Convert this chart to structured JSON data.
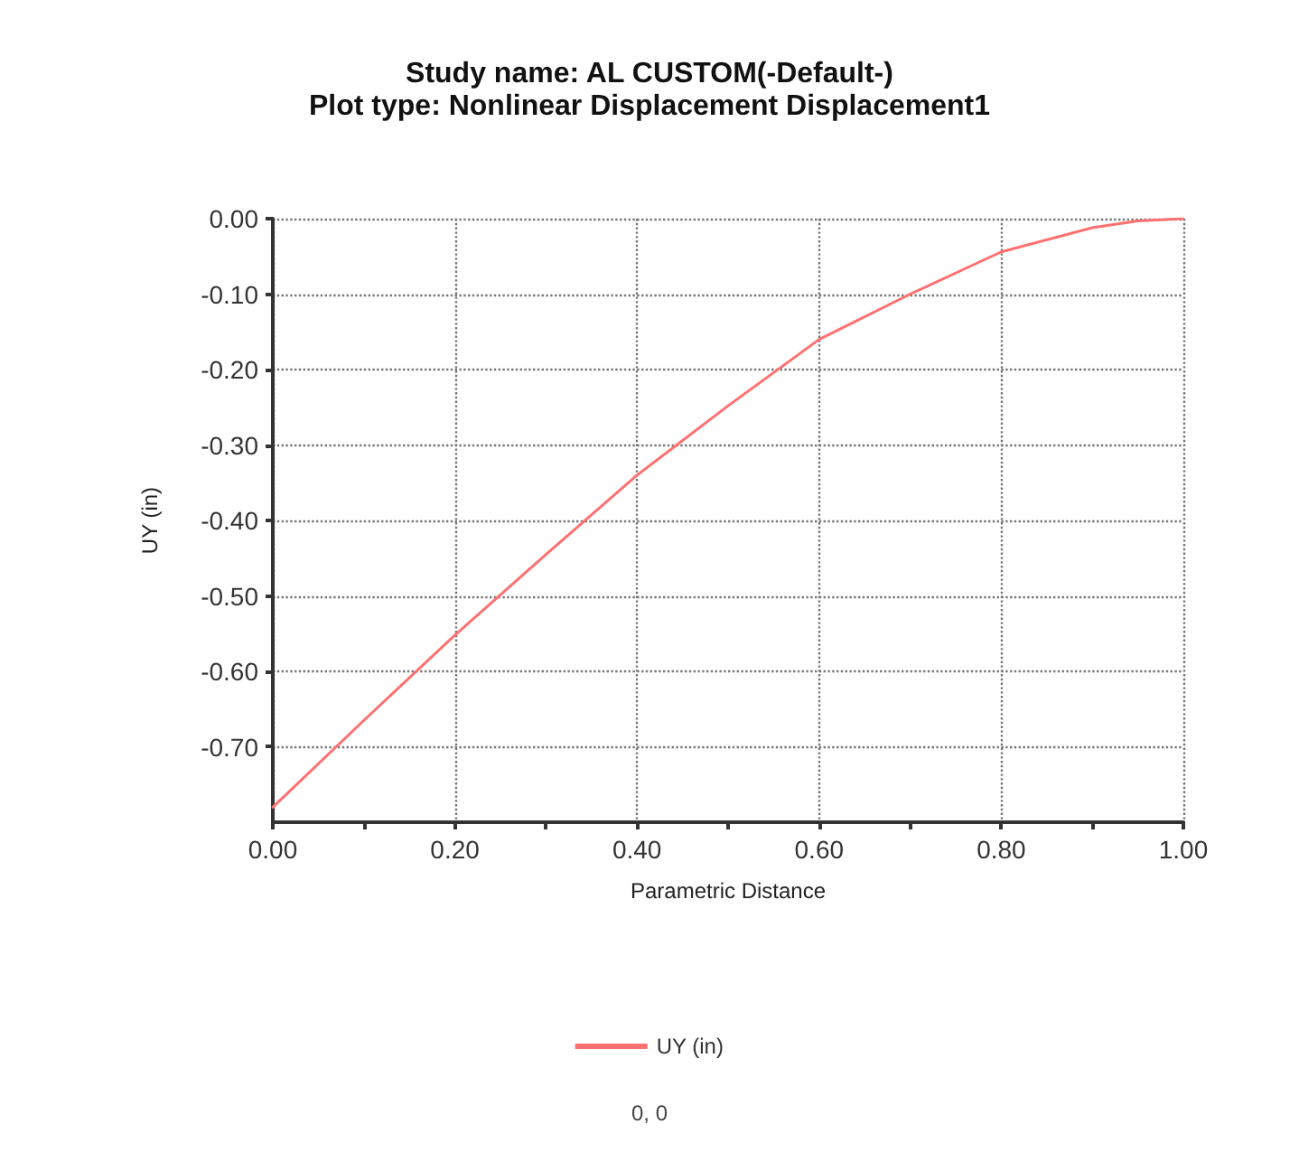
{
  "chart_data": {
    "type": "line",
    "title": "Study name: AL CUSTOM(-Default-)",
    "subtitle": "Plot type: Nonlinear Displacement Displacement1",
    "xlabel": "Parametric Distance",
    "ylabel": "UY (in)",
    "x": [
      0,
      0.1,
      0.2,
      0.3,
      0.4,
      0.5,
      0.6,
      0.7,
      0.8,
      0.9,
      0.95,
      1.0
    ],
    "series": [
      {
        "name": "UY (in)",
        "color": "#ff7070",
        "values": [
          -0.78,
          -0.665,
          -0.552,
          -0.445,
          -0.34,
          -0.248,
          -0.16,
          -0.1,
          -0.044,
          -0.012,
          -0.003,
          0
        ]
      }
    ],
    "xlim": [
      0,
      1
    ],
    "xticks": [
      {
        "value": 0,
        "label": "0.00"
      },
      {
        "value": 0.2,
        "label": "0.20"
      },
      {
        "value": 0.4,
        "label": "0.40"
      },
      {
        "value": 0.6,
        "label": "0.60"
      },
      {
        "value": 0.8,
        "label": "0.80"
      },
      {
        "value": 1,
        "label": "1.00"
      }
    ],
    "ylim": [
      -0.8,
      0
    ],
    "yticks": [
      {
        "value": 0,
        "label": "0.00"
      },
      {
        "value": -0.1,
        "label": "-0.10"
      },
      {
        "value": -0.2,
        "label": "-0.20"
      },
      {
        "value": -0.3,
        "label": "-0.30"
      },
      {
        "value": -0.4,
        "label": "-0.40"
      },
      {
        "value": -0.5,
        "label": "-0.50"
      },
      {
        "value": -0.6,
        "label": "-0.60"
      },
      {
        "value": -0.7,
        "label": "-0.70"
      }
    ],
    "grid": true,
    "legend": "bottom",
    "marker": "none",
    "line_style": "solid",
    "annotations": [
      "0, 0"
    ]
  }
}
